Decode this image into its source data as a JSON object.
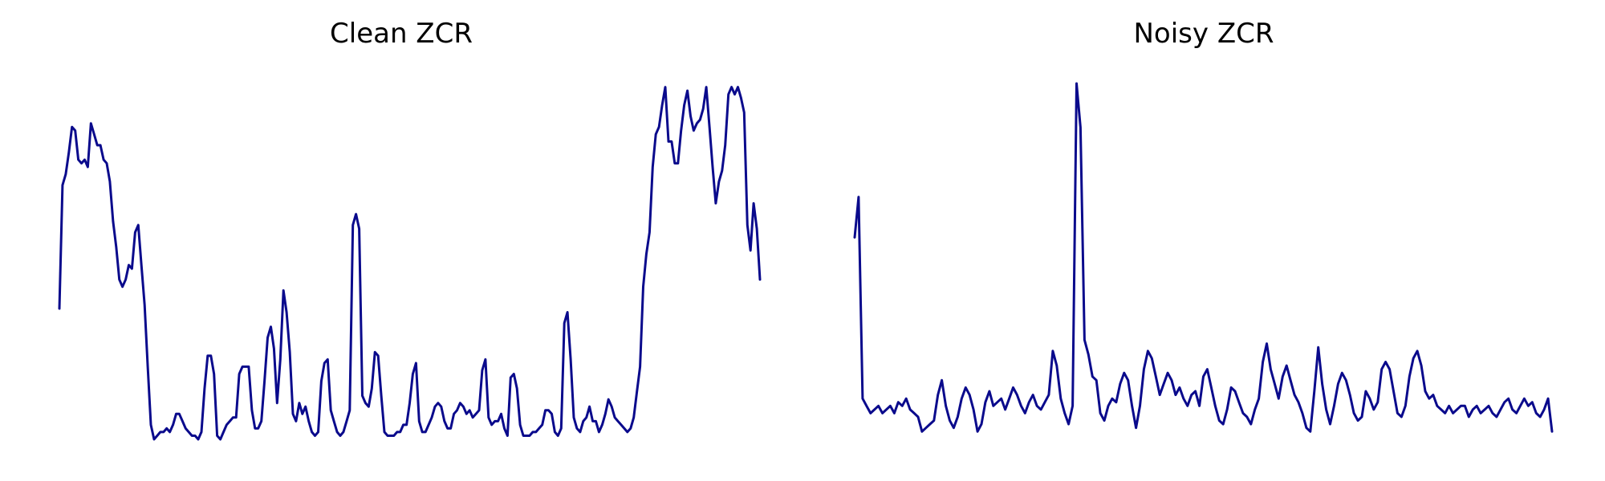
{
  "colors": {
    "line": "#0a0a8c",
    "background": "#ffffff"
  },
  "chart_data": [
    {
      "type": "line",
      "title": "Clean ZCR",
      "axes_visible": false,
      "grid": false,
      "ylim": [
        0,
        1
      ],
      "series": [
        {
          "values": [
            0.36,
            0.7,
            0.73,
            0.79,
            0.86,
            0.85,
            0.77,
            0.76,
            0.77,
            0.75,
            0.87,
            0.84,
            0.81,
            0.81,
            0.77,
            0.76,
            0.71,
            0.6,
            0.53,
            0.44,
            0.42,
            0.44,
            0.48,
            0.47,
            0.57,
            0.59,
            0.48,
            0.37,
            0.2,
            0.04,
            0.0,
            0.01,
            0.02,
            0.02,
            0.03,
            0.02,
            0.04,
            0.07,
            0.07,
            0.05,
            0.03,
            0.02,
            0.01,
            0.01,
            0.0,
            0.02,
            0.14,
            0.23,
            0.23,
            0.18,
            0.01,
            0.0,
            0.02,
            0.04,
            0.05,
            0.06,
            0.06,
            0.18,
            0.2,
            0.2,
            0.2,
            0.08,
            0.03,
            0.03,
            0.05,
            0.16,
            0.28,
            0.31,
            0.25,
            0.1,
            0.22,
            0.41,
            0.35,
            0.24,
            0.07,
            0.05,
            0.1,
            0.07,
            0.09,
            0.05,
            0.02,
            0.01,
            0.02,
            0.16,
            0.21,
            0.22,
            0.08,
            0.05,
            0.02,
            0.01,
            0.02,
            0.05,
            0.08,
            0.59,
            0.62,
            0.58,
            0.12,
            0.1,
            0.09,
            0.14,
            0.24,
            0.23,
            0.12,
            0.02,
            0.01,
            0.01,
            0.01,
            0.02,
            0.02,
            0.04,
            0.04,
            0.1,
            0.18,
            0.21,
            0.05,
            0.02,
            0.02,
            0.04,
            0.06,
            0.09,
            0.1,
            0.09,
            0.05,
            0.03,
            0.03,
            0.07,
            0.08,
            0.1,
            0.09,
            0.07,
            0.08,
            0.06,
            0.07,
            0.08,
            0.19,
            0.22,
            0.06,
            0.04,
            0.05,
            0.05,
            0.07,
            0.03,
            0.01,
            0.17,
            0.18,
            0.14,
            0.04,
            0.01,
            0.01,
            0.01,
            0.02,
            0.02,
            0.03,
            0.04,
            0.08,
            0.08,
            0.07,
            0.02,
            0.01,
            0.03,
            0.32,
            0.35,
            0.22,
            0.06,
            0.03,
            0.02,
            0.05,
            0.06,
            0.09,
            0.05,
            0.05,
            0.02,
            0.04,
            0.07,
            0.11,
            0.09,
            0.06,
            0.05,
            0.04,
            0.03,
            0.02,
            0.03,
            0.06,
            0.13,
            0.2,
            0.42,
            0.51,
            0.57,
            0.75,
            0.84,
            0.86,
            0.92,
            0.97,
            0.82,
            0.82,
            0.76,
            0.76,
            0.85,
            0.92,
            0.96,
            0.89,
            0.85,
            0.87,
            0.88,
            0.91,
            0.97,
            0.86,
            0.75,
            0.65,
            0.71,
            0.74,
            0.81,
            0.95,
            0.97,
            0.95,
            0.97,
            0.94,
            0.9,
            0.59,
            0.52,
            0.65,
            0.58,
            0.44
          ]
        }
      ]
    },
    {
      "type": "line",
      "title": "Noisy ZCR",
      "axes_visible": false,
      "grid": false,
      "ylim": [
        0,
        1
      ],
      "series": [
        {
          "values": [
            0.56,
            0.67,
            0.12,
            0.1,
            0.08,
            0.09,
            0.1,
            0.08,
            0.09,
            0.1,
            0.08,
            0.11,
            0.1,
            0.12,
            0.09,
            0.08,
            0.07,
            0.03,
            0.04,
            0.05,
            0.06,
            0.13,
            0.17,
            0.1,
            0.06,
            0.04,
            0.07,
            0.12,
            0.15,
            0.13,
            0.09,
            0.03,
            0.05,
            0.11,
            0.14,
            0.1,
            0.11,
            0.12,
            0.09,
            0.12,
            0.15,
            0.13,
            0.1,
            0.08,
            0.11,
            0.13,
            0.1,
            0.09,
            0.11,
            0.13,
            0.25,
            0.21,
            0.12,
            0.08,
            0.05,
            0.1,
            0.98,
            0.86,
            0.28,
            0.24,
            0.18,
            0.17,
            0.08,
            0.06,
            0.1,
            0.12,
            0.11,
            0.16,
            0.19,
            0.17,
            0.1,
            0.04,
            0.1,
            0.2,
            0.25,
            0.23,
            0.18,
            0.13,
            0.16,
            0.19,
            0.17,
            0.13,
            0.15,
            0.12,
            0.1,
            0.13,
            0.14,
            0.1,
            0.18,
            0.2,
            0.15,
            0.1,
            0.06,
            0.05,
            0.09,
            0.15,
            0.14,
            0.11,
            0.08,
            0.07,
            0.05,
            0.09,
            0.12,
            0.22,
            0.27,
            0.2,
            0.16,
            0.12,
            0.18,
            0.21,
            0.17,
            0.13,
            0.11,
            0.08,
            0.04,
            0.03,
            0.14,
            0.26,
            0.16,
            0.09,
            0.05,
            0.1,
            0.16,
            0.19,
            0.17,
            0.13,
            0.08,
            0.06,
            0.07,
            0.14,
            0.12,
            0.09,
            0.11,
            0.2,
            0.22,
            0.2,
            0.14,
            0.08,
            0.07,
            0.1,
            0.18,
            0.23,
            0.25,
            0.21,
            0.14,
            0.12,
            0.13,
            0.1,
            0.09,
            0.08,
            0.1,
            0.08,
            0.09,
            0.1,
            0.1,
            0.07,
            0.09,
            0.1,
            0.08,
            0.09,
            0.1,
            0.08,
            0.07,
            0.09,
            0.11,
            0.12,
            0.09,
            0.08,
            0.1,
            0.12,
            0.1,
            0.11,
            0.08,
            0.07,
            0.09,
            0.12,
            0.03
          ]
        }
      ]
    }
  ]
}
